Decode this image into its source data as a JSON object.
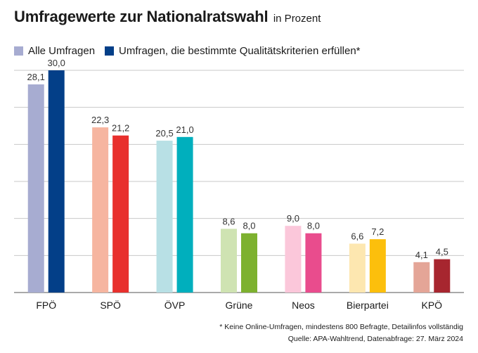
{
  "title": "Umfragewerte zur Nationalratswahl",
  "subtitle": "in Prozent",
  "chart_data": {
    "type": "bar",
    "title": "Umfragewerte zur Nationalratswahl",
    "subtitle": "in Prozent",
    "xlabel": "",
    "ylabel": "",
    "ylim": [
      0,
      30
    ],
    "gridlines": [
      0,
      5,
      10,
      15,
      20,
      25,
      30
    ],
    "categories": [
      "FPÖ",
      "SPÖ",
      "ÖVP",
      "Grüne",
      "Neos",
      "Bierpartei",
      "KPÖ"
    ],
    "series": [
      {
        "name": "Alle Umfragen",
        "values": [
          28.1,
          22.3,
          20.5,
          8.6,
          9.0,
          6.6,
          4.1
        ],
        "labels": [
          "28,1",
          "22,3",
          "20,5",
          "8,6",
          "9,0",
          "6,6",
          "4,1"
        ],
        "colors": [
          "#a7acd1",
          "#f6b5a0",
          "#b8e0e5",
          "#cfe3b2",
          "#fbc7da",
          "#fde7b0",
          "#e4a597"
        ]
      },
      {
        "name": "Umfragen, die bestimmte Qualitätskriterien erfüllen*",
        "values": [
          30.0,
          21.2,
          21.0,
          8.0,
          8.0,
          7.2,
          4.5
        ],
        "labels": [
          "30,0",
          "21,2",
          "21,0",
          "8,0",
          "8,0",
          "7,2",
          "4,5"
        ],
        "colors": [
          "#033f88",
          "#e8302d",
          "#00afbd",
          "#7db12f",
          "#e94c8d",
          "#fcbf0c",
          "#a7262f"
        ]
      }
    ],
    "legend": [
      {
        "label": "Alle Umfragen",
        "color": "#a7acd1"
      },
      {
        "label": "Umfragen, die bestimmte Qualitätskriterien erfüllen*",
        "color": "#033f88"
      }
    ]
  },
  "footnote": "* Keine Online-Umfragen, mindestens 800 Befragte, Detailinfos vollständig",
  "source": "Quelle: APA-Wahltrend, Datenabfrage: 27. März 2024"
}
